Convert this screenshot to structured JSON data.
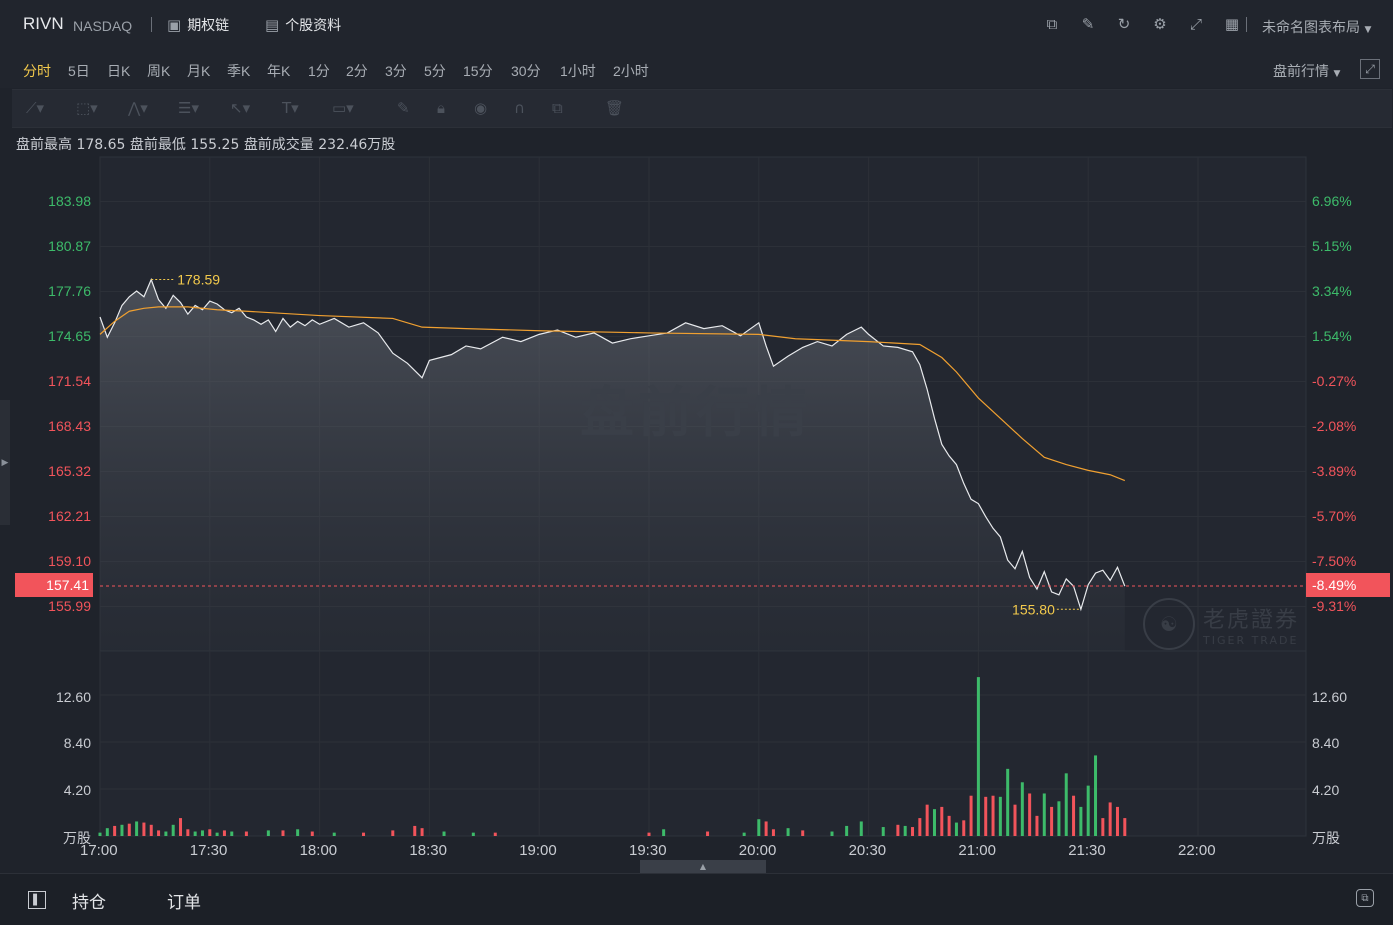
{
  "header": {
    "symbol": "RIVN",
    "exchange": "NASDAQ",
    "options_chain": "期权链",
    "stock_profile": "个股资料",
    "layout_name": "未命名图表布局"
  },
  "timeframes": [
    "分时",
    "5日",
    "日K",
    "周K",
    "月K",
    "季K",
    "年K",
    "1分",
    "2分",
    "3分",
    "5分",
    "15分",
    "30分",
    "1小时",
    "2小时"
  ],
  "active_timeframe": "分时",
  "session_selector": "盘前行情",
  "info": {
    "high_label": "盘前最高",
    "high": "178.65",
    "low_label": "盘前最低",
    "low": "155.25",
    "volume_label": "盘前成交量",
    "volume": "232.46万股"
  },
  "watermark": "盘前行情",
  "logo": {
    "cn": "老虎證券",
    "en": "TIGER TRADE"
  },
  "price_axis_left": [
    "183.98",
    "180.87",
    "177.76",
    "174.65",
    "171.54",
    "168.43",
    "165.32",
    "162.21",
    "159.10",
    "155.99"
  ],
  "percent_axis_right": [
    "6.96%",
    "5.15%",
    "3.34%",
    "1.54%",
    "-0.27%",
    "-2.08%",
    "-3.89%",
    "-5.70%",
    "-7.50%",
    "-9.31%"
  ],
  "current_price": "157.41",
  "current_change": "-8.49%",
  "volume_axis": [
    "12.60",
    "8.40",
    "4.20"
  ],
  "volume_unit": "万股",
  "bottom_tabs": {
    "positions": "持仓",
    "orders": "订单"
  },
  "colors": {
    "up": "#3dbb6a",
    "down": "#f2545b",
    "price_line": "#e8eaed",
    "avg_line": "#f0a030",
    "annotation": "#f2c94c"
  },
  "chart_data": {
    "type": "line",
    "x_ticks": [
      "17:00",
      "17:30",
      "18:00",
      "18:30",
      "19:00",
      "19:30",
      "20:00",
      "20:30",
      "21:00",
      "21:30",
      "22:00"
    ],
    "ylim": [
      154.0,
      186.0
    ],
    "series": [
      {
        "points": [
          [
            "17:00",
            176.0
          ],
          [
            "17:02",
            174.6
          ],
          [
            "17:04",
            175.6
          ],
          [
            "17:06",
            176.8
          ],
          [
            "17:08",
            177.4
          ],
          [
            "17:10",
            177.8
          ],
          [
            "17:12",
            177.4
          ],
          [
            "17:14",
            178.59
          ],
          [
            "17:16",
            177.2
          ],
          [
            "17:18",
            176.6
          ],
          [
            "17:20",
            177.5
          ],
          [
            "17:22",
            177.0
          ],
          [
            "17:24",
            176.2
          ],
          [
            "17:26",
            176.8
          ],
          [
            "17:28",
            176.5
          ],
          [
            "17:30",
            177.1
          ],
          [
            "17:32",
            176.9
          ],
          [
            "17:34",
            176.5
          ],
          [
            "17:36",
            176.3
          ],
          [
            "17:38",
            176.6
          ],
          [
            "17:40",
            176.0
          ],
          [
            "17:42",
            175.8
          ],
          [
            "17:44",
            175.5
          ],
          [
            "17:46",
            175.8
          ],
          [
            "17:48",
            175.0
          ],
          [
            "17:50",
            175.9
          ],
          [
            "17:52",
            175.3
          ],
          [
            "17:54",
            175.7
          ],
          [
            "17:56",
            175.4
          ],
          [
            "17:58",
            175.8
          ],
          [
            "18:00",
            175.5
          ],
          [
            "18:04",
            175.9
          ],
          [
            "18:08",
            175.3
          ],
          [
            "18:12",
            175.6
          ],
          [
            "18:16",
            174.9
          ],
          [
            "18:20",
            173.5
          ],
          [
            "18:24",
            172.8
          ],
          [
            "18:28",
            171.8
          ],
          [
            "18:30",
            173.0
          ],
          [
            "18:36",
            173.4
          ],
          [
            "18:40",
            174.0
          ],
          [
            "18:44",
            173.8
          ],
          [
            "18:50",
            174.6
          ],
          [
            "18:55",
            174.3
          ],
          [
            "19:00",
            174.8
          ],
          [
            "19:05",
            175.1
          ],
          [
            "19:10",
            174.6
          ],
          [
            "19:15",
            174.9
          ],
          [
            "19:20",
            174.2
          ],
          [
            "19:25",
            174.5
          ],
          [
            "19:30",
            174.7
          ],
          [
            "19:35",
            174.9
          ],
          [
            "19:40",
            175.6
          ],
          [
            "19:45",
            175.2
          ],
          [
            "19:50",
            175.4
          ],
          [
            "19:55",
            174.7
          ],
          [
            "20:00",
            175.6
          ],
          [
            "20:02",
            174.0
          ],
          [
            "20:04",
            172.6
          ],
          [
            "20:08",
            173.3
          ],
          [
            "20:12",
            173.9
          ],
          [
            "20:16",
            174.3
          ],
          [
            "20:20",
            174.0
          ],
          [
            "20:24",
            174.8
          ],
          [
            "20:28",
            175.3
          ],
          [
            "20:30",
            174.8
          ],
          [
            "20:34",
            174.0
          ],
          [
            "20:38",
            173.9
          ],
          [
            "20:42",
            173.6
          ],
          [
            "20:44",
            172.7
          ],
          [
            "20:46",
            171.0
          ],
          [
            "20:48",
            169.0
          ],
          [
            "20:50",
            167.2
          ],
          [
            "20:52",
            166.4
          ],
          [
            "20:54",
            165.8
          ],
          [
            "20:56",
            164.5
          ],
          [
            "20:58",
            163.4
          ],
          [
            "21:00",
            163.1
          ],
          [
            "21:02",
            162.2
          ],
          [
            "21:04",
            161.4
          ],
          [
            "21:06",
            160.8
          ],
          [
            "21:08",
            159.2
          ],
          [
            "21:10",
            158.6
          ],
          [
            "21:12",
            159.8
          ],
          [
            "21:14",
            158.0
          ],
          [
            "21:16",
            157.2
          ],
          [
            "21:18",
            158.4
          ],
          [
            "21:20",
            157.0
          ],
          [
            "21:22",
            156.8
          ],
          [
            "21:24",
            157.9
          ],
          [
            "21:26",
            157.4
          ],
          [
            "21:28",
            155.8
          ],
          [
            "21:30",
            157.5
          ],
          [
            "21:32",
            158.3
          ],
          [
            "21:34",
            158.5
          ],
          [
            "21:36",
            157.8
          ],
          [
            "21:38",
            158.7
          ],
          [
            "21:40",
            157.4
          ]
        ]
      },
      {
        "points": [
          [
            "17:00",
            174.8
          ],
          [
            "17:04",
            175.7
          ],
          [
            "17:08",
            176.4
          ],
          [
            "17:12",
            176.6
          ],
          [
            "17:16",
            176.7
          ],
          [
            "17:24",
            176.7
          ],
          [
            "17:32",
            176.5
          ],
          [
            "17:40",
            176.4
          ],
          [
            "18:00",
            176.1
          ],
          [
            "18:20",
            175.9
          ],
          [
            "18:28",
            175.3
          ],
          [
            "18:40",
            175.2
          ],
          [
            "19:00",
            175.05
          ],
          [
            "19:30",
            174.9
          ],
          [
            "20:00",
            174.8
          ],
          [
            "20:10",
            174.5
          ],
          [
            "20:30",
            174.3
          ],
          [
            "20:44",
            174.1
          ],
          [
            "20:50",
            173.2
          ],
          [
            "20:54",
            172.2
          ],
          [
            "21:00",
            170.4
          ],
          [
            "21:06",
            169.0
          ],
          [
            "21:12",
            167.6
          ],
          [
            "21:18",
            166.3
          ],
          [
            "21:24",
            165.8
          ],
          [
            "21:30",
            165.4
          ],
          [
            "21:36",
            165.1
          ],
          [
            "21:40",
            164.7
          ]
        ]
      }
    ],
    "annotations": [
      {
        "label": "178.59",
        "x": "17:14",
        "y": 178.59
      },
      {
        "label": "155.80",
        "x": "21:28",
        "y": 155.8
      }
    ],
    "volume": {
      "ylim": [
        0,
        15
      ],
      "bars": [
        [
          "17:00",
          0.3,
          "up"
        ],
        [
          "17:02",
          0.7,
          "up"
        ],
        [
          "17:04",
          0.9,
          "down"
        ],
        [
          "17:06",
          1.0,
          "up"
        ],
        [
          "17:08",
          1.1,
          "down"
        ],
        [
          "17:10",
          1.3,
          "up"
        ],
        [
          "17:12",
          1.2,
          "down"
        ],
        [
          "17:14",
          1.0,
          "down"
        ],
        [
          "17:16",
          0.5,
          "down"
        ],
        [
          "17:18",
          0.4,
          "up"
        ],
        [
          "17:20",
          1.0,
          "up"
        ],
        [
          "17:22",
          1.6,
          "down"
        ],
        [
          "17:24",
          0.6,
          "down"
        ],
        [
          "17:26",
          0.4,
          "up"
        ],
        [
          "17:28",
          0.5,
          "up"
        ],
        [
          "17:30",
          0.6,
          "down"
        ],
        [
          "17:32",
          0.3,
          "up"
        ],
        [
          "17:34",
          0.5,
          "down"
        ],
        [
          "17:36",
          0.4,
          "up"
        ],
        [
          "17:40",
          0.4,
          "down"
        ],
        [
          "17:46",
          0.5,
          "up"
        ],
        [
          "17:50",
          0.5,
          "down"
        ],
        [
          "17:54",
          0.6,
          "up"
        ],
        [
          "17:58",
          0.4,
          "down"
        ],
        [
          "18:04",
          0.3,
          "up"
        ],
        [
          "18:12",
          0.3,
          "down"
        ],
        [
          "18:20",
          0.5,
          "down"
        ],
        [
          "18:26",
          0.9,
          "down"
        ],
        [
          "18:28",
          0.7,
          "down"
        ],
        [
          "18:34",
          0.4,
          "up"
        ],
        [
          "18:42",
          0.3,
          "up"
        ],
        [
          "18:48",
          0.3,
          "down"
        ],
        [
          "19:30",
          0.3,
          "down"
        ],
        [
          "19:34",
          0.6,
          "up"
        ],
        [
          "19:46",
          0.4,
          "down"
        ],
        [
          "19:56",
          0.3,
          "up"
        ],
        [
          "20:00",
          1.5,
          "up"
        ],
        [
          "20:02",
          1.3,
          "down"
        ],
        [
          "20:04",
          0.6,
          "down"
        ],
        [
          "20:08",
          0.7,
          "up"
        ],
        [
          "20:12",
          0.5,
          "down"
        ],
        [
          "20:20",
          0.4,
          "up"
        ],
        [
          "20:24",
          0.9,
          "up"
        ],
        [
          "20:28",
          1.3,
          "up"
        ],
        [
          "20:34",
          0.8,
          "up"
        ],
        [
          "20:38",
          1.0,
          "down"
        ],
        [
          "20:40",
          0.9,
          "up"
        ],
        [
          "20:42",
          0.8,
          "down"
        ],
        [
          "20:44",
          1.6,
          "down"
        ],
        [
          "20:46",
          2.8,
          "down"
        ],
        [
          "20:48",
          2.4,
          "up"
        ],
        [
          "20:50",
          2.6,
          "down"
        ],
        [
          "20:52",
          1.8,
          "down"
        ],
        [
          "20:54",
          1.2,
          "up"
        ],
        [
          "20:56",
          1.4,
          "down"
        ],
        [
          "20:58",
          3.6,
          "down"
        ],
        [
          "21:00",
          14.2,
          "up"
        ],
        [
          "21:02",
          3.5,
          "down"
        ],
        [
          "21:04",
          3.6,
          "down"
        ],
        [
          "21:06",
          3.5,
          "up"
        ],
        [
          "21:08",
          6.0,
          "up"
        ],
        [
          "21:10",
          2.8,
          "down"
        ],
        [
          "21:12",
          4.8,
          "up"
        ],
        [
          "21:14",
          3.8,
          "down"
        ],
        [
          "21:16",
          1.8,
          "down"
        ],
        [
          "21:18",
          3.8,
          "up"
        ],
        [
          "21:20",
          2.6,
          "down"
        ],
        [
          "21:22",
          3.1,
          "up"
        ],
        [
          "21:24",
          5.6,
          "up"
        ],
        [
          "21:26",
          3.6,
          "down"
        ],
        [
          "21:28",
          2.6,
          "up"
        ],
        [
          "21:30",
          4.5,
          "up"
        ],
        [
          "21:32",
          7.2,
          "up"
        ],
        [
          "21:34",
          1.6,
          "down"
        ],
        [
          "21:36",
          3.0,
          "down"
        ],
        [
          "21:38",
          2.6,
          "down"
        ],
        [
          "21:40",
          1.6,
          "down"
        ]
      ]
    }
  }
}
